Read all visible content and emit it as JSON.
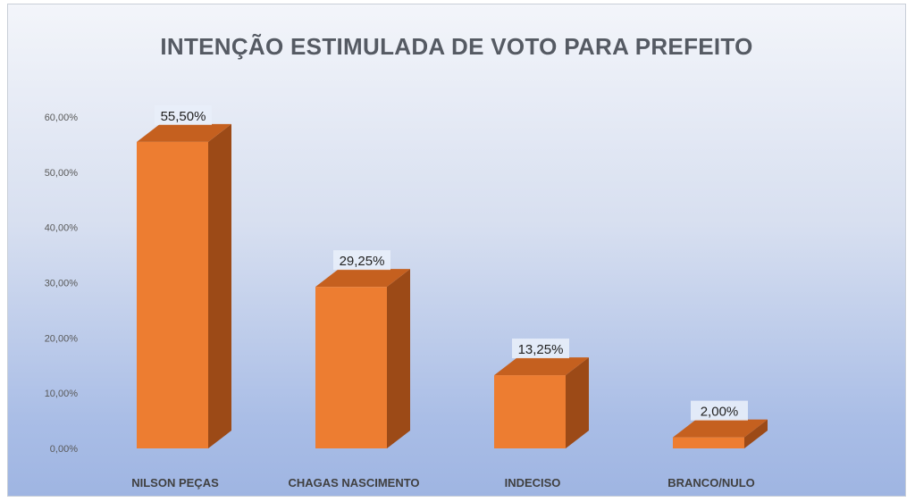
{
  "chart_data": {
    "type": "bar",
    "title": "INTENÇÃO ESTIMULADA DE VOTO PARA PREFEITO",
    "categories": [
      "NILSON PEÇAS",
      "CHAGAS NASCIMENTO",
      "INDECISO",
      "BRANCO/NULO"
    ],
    "values": [
      55.5,
      29.25,
      13.25,
      2.0
    ],
    "data_labels": [
      "55,50%",
      "29,25%",
      "13,25%",
      "2,00%"
    ],
    "ylim": [
      0,
      60
    ],
    "yticks": [
      0,
      10,
      20,
      30,
      40,
      50,
      60
    ],
    "ytick_labels": [
      "0,00%",
      "10,00%",
      "20,00%",
      "30,00%",
      "40,00%",
      "50,00%",
      "60,00%"
    ],
    "xlabel": "",
    "ylabel": "",
    "grid": false,
    "bar_style": "3d",
    "colors": {
      "front": "#ed7d31",
      "side": "#9c4a17",
      "top": "#c5601f"
    }
  }
}
